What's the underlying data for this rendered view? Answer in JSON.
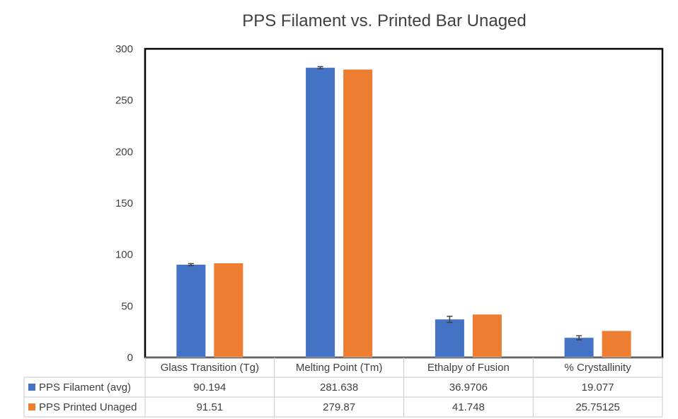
{
  "chart_data": {
    "type": "bar",
    "title": "PPS Filament vs. Printed Bar Unaged",
    "categories": [
      "Glass Transition (Tg)",
      "Melting Point (Tm)",
      "Ethalpy of Fusion",
      "% Crystallinity"
    ],
    "ylim": [
      0,
      300
    ],
    "yticks": [
      0,
      50,
      100,
      150,
      200,
      250,
      300
    ],
    "grid": false,
    "legend": "data-table",
    "series": [
      {
        "name": "PPS Filament (avg)",
        "values": [
          90.194,
          281.638,
          36.9706,
          19.077
        ],
        "error": [
          1,
          1,
          3,
          2
        ],
        "color": "#4472C4"
      },
      {
        "name": "PPS Printed Unaged",
        "values": [
          91.51,
          279.87,
          41.748,
          25.75125
        ],
        "color": "#ED7D31"
      }
    ],
    "table": [
      [
        "90.194",
        "281.638",
        "36.9706",
        "19.077"
      ],
      [
        "91.51",
        "279.87",
        "41.748",
        "25.75125"
      ]
    ]
  }
}
